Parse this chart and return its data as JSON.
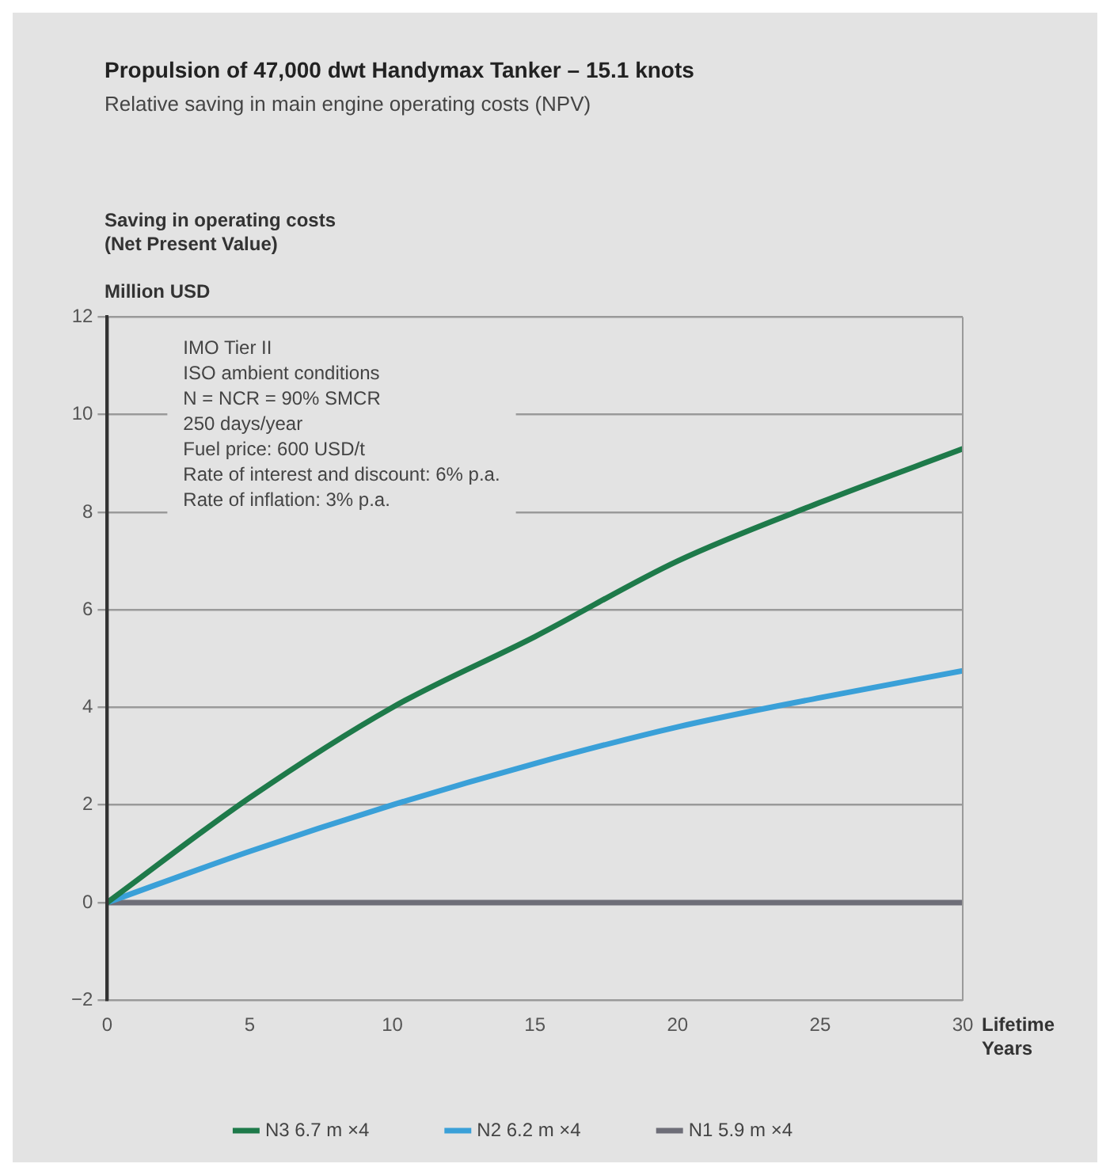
{
  "chart_data": {
    "type": "line",
    "title": "Propulsion of 47,000 dwt Handymax Tanker – 15.1 knots",
    "subtitle": "Relative saving in main engine operating costs (NPV)",
    "ylabel": "Saving in operating costs\n(Net Present Value)\n\nMillion USD",
    "xlabel": "Lifetime\nYears",
    "annotations": [
      "IMO Tier II",
      "ISO ambient conditions",
      "N = NCR = 90% SMCR",
      "250 days/year",
      "Fuel price: 600 USD/t",
      "Rate of interest and discount: 6% p.a.",
      "Rate of inflation: 3% p.a."
    ],
    "x": [
      0,
      5,
      10,
      15,
      20,
      25,
      30
    ],
    "series": [
      {
        "name": "N3 6.7 m ×4",
        "color": "#1e7a4a",
        "values": [
          0,
          2.15,
          4.0,
          5.45,
          7.0,
          8.2,
          9.3
        ]
      },
      {
        "name": "N2 6.2 m ×4",
        "color": "#3aa0d8",
        "values": [
          0,
          1.05,
          2.0,
          2.85,
          3.6,
          4.2,
          4.75
        ]
      },
      {
        "name": "N1 5.9 m ×4",
        "color": "#6e6e78",
        "values": [
          0,
          0,
          0,
          0,
          0,
          0,
          0
        ]
      }
    ],
    "xlim": [
      0,
      30
    ],
    "xticks": [
      0,
      5,
      10,
      15,
      20,
      25,
      30
    ],
    "ylim": [
      -2,
      12
    ],
    "yticks": [
      -2,
      0,
      2,
      4,
      6,
      8,
      10,
      12
    ],
    "grid": "y",
    "legend": "bottom",
    "marker": "none",
    "line_style": "solid"
  }
}
